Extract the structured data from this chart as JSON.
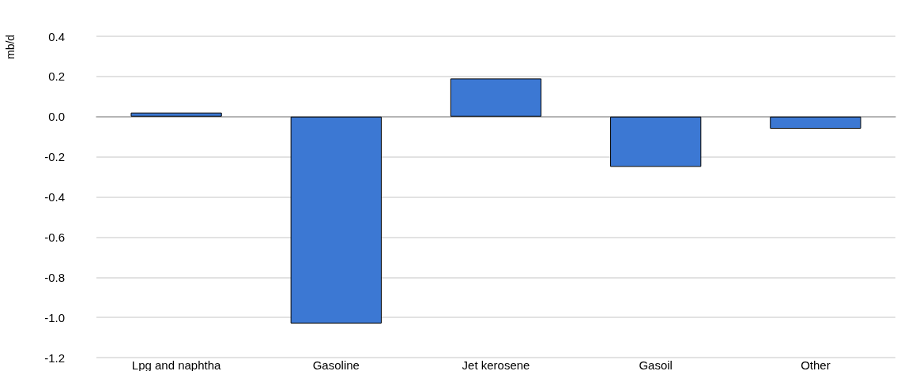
{
  "chart_data": {
    "type": "bar",
    "ylabel": "mb/d",
    "categories": [
      "Lpg and naphtha",
      "Gasoline",
      "Jet kerosene",
      "Gasoil",
      "Other"
    ],
    "values": [
      0.02,
      -1.03,
      0.19,
      -0.25,
      -0.06
    ],
    "color": "#3c78d3",
    "ylim": [
      -1.2,
      0.4
    ],
    "yticks": [
      {
        "value": -1.2,
        "label": "-1.2"
      },
      {
        "value": -1.0,
        "label": "-1.0"
      },
      {
        "value": -0.8,
        "label": "-0.8"
      },
      {
        "value": -0.6,
        "label": "-0.6"
      },
      {
        "value": -0.4,
        "label": "-0.4"
      },
      {
        "value": -0.2,
        "label": "-0.2"
      },
      {
        "value": 0,
        "label": "0.0"
      },
      {
        "value": 0.2,
        "label": "0.2"
      },
      {
        "value": 0.4,
        "label": "0.4"
      }
    ],
    "grid": true
  }
}
